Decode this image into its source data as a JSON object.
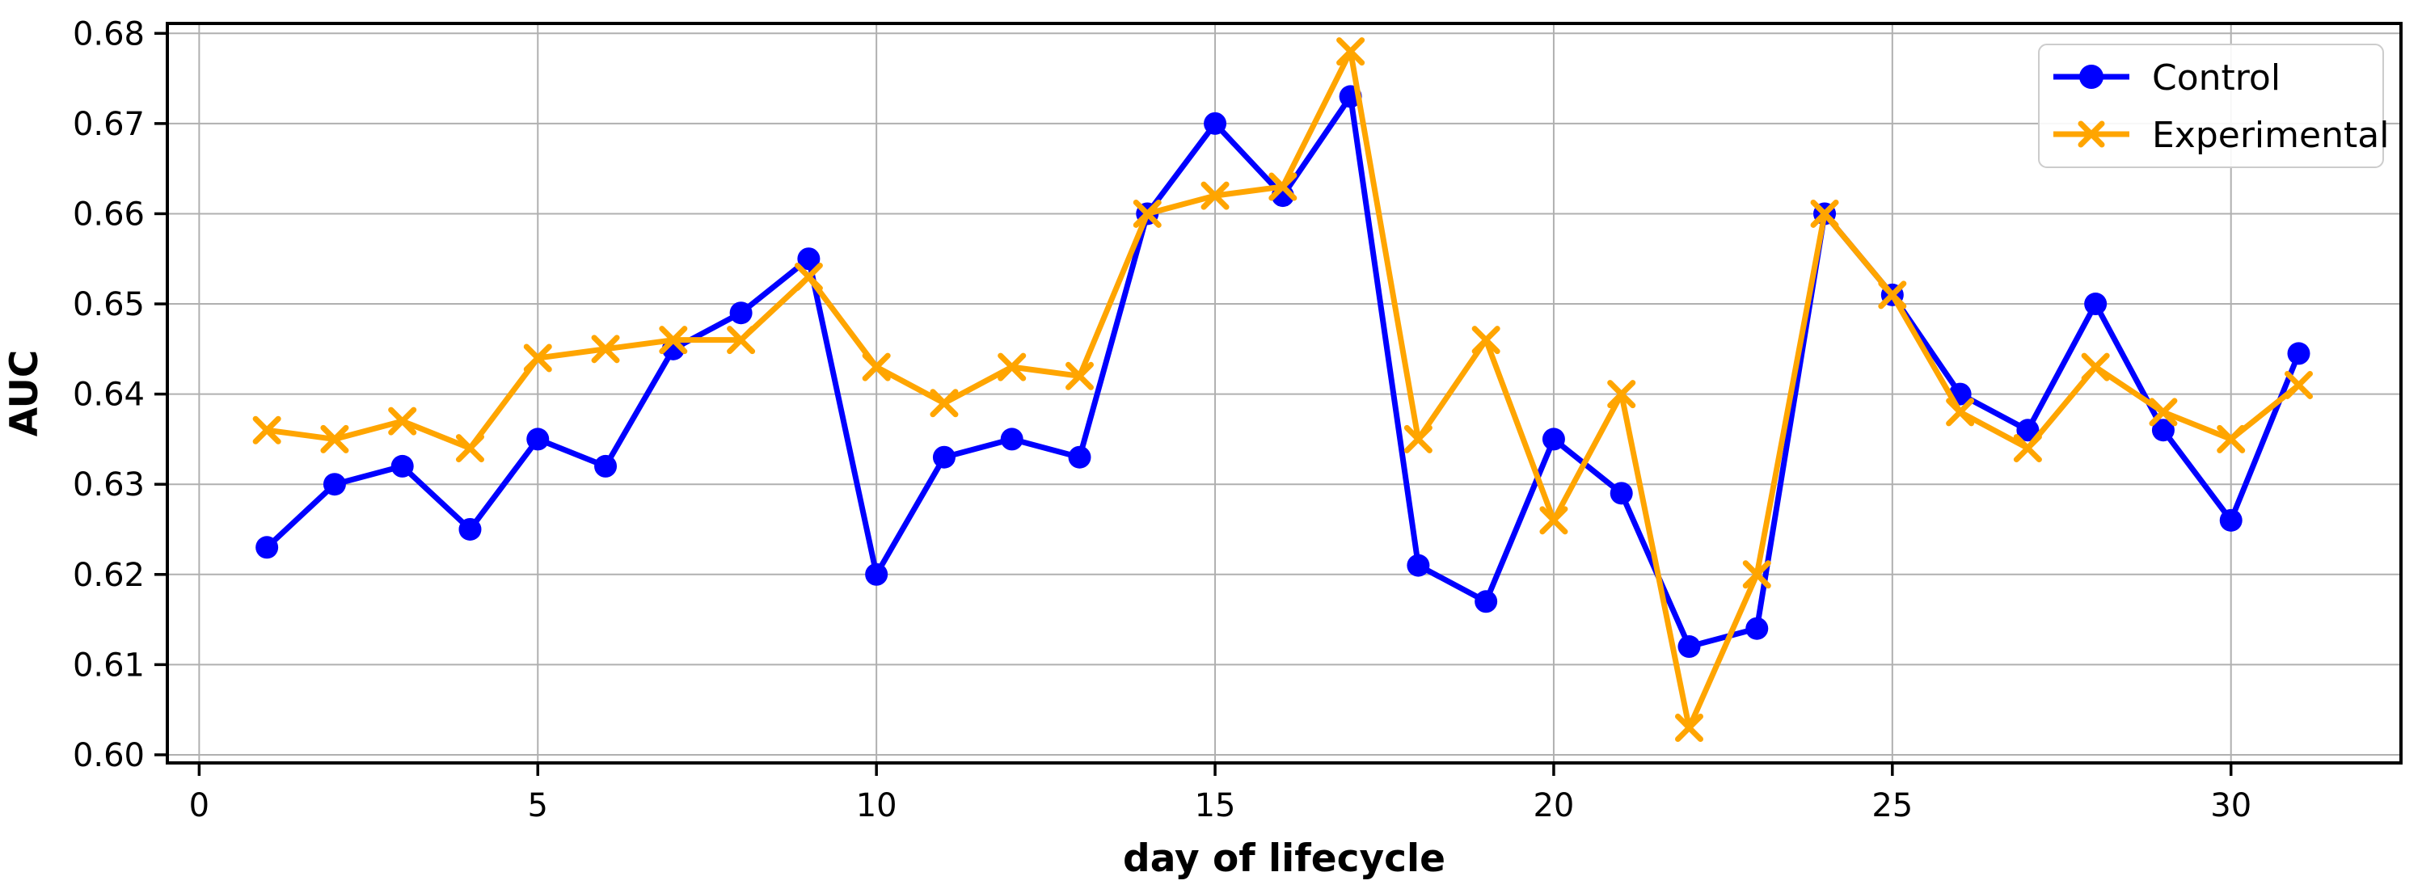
{
  "chart_data": {
    "type": "line",
    "title": "",
    "xlabel": "day of lifecycle",
    "ylabel": "AUC",
    "grid": true,
    "grid_color": "#b0b0b0",
    "frame_color": "#000000",
    "background_color": "#ffffff",
    "legend_position": "upper right",
    "legend_border_color": "#cccccc",
    "xlim": [
      -0.47,
      32.51
    ],
    "ylim": [
      0.5991,
      0.6811
    ],
    "xticks": [
      0,
      5,
      10,
      15,
      20,
      25,
      30
    ],
    "yticks": [
      "0.60",
      "0.61",
      "0.62",
      "0.63",
      "0.64",
      "0.65",
      "0.66",
      "0.67",
      "0.68"
    ],
    "x": [
      1,
      2,
      3,
      4,
      5,
      6,
      7,
      8,
      9,
      10,
      11,
      12,
      13,
      14,
      15,
      16,
      17,
      18,
      19,
      20,
      21,
      22,
      23,
      24,
      25,
      26,
      27,
      28,
      29,
      30,
      31
    ],
    "series": [
      {
        "name": "Control",
        "color": "#0000ff",
        "marker": "circle",
        "values": [
          0.623,
          0.63,
          0.632,
          0.625,
          0.635,
          0.632,
          0.645,
          0.649,
          0.655,
          0.62,
          0.633,
          0.635,
          0.633,
          0.66,
          0.67,
          0.662,
          0.673,
          0.621,
          0.617,
          0.635,
          0.629,
          0.612,
          0.614,
          0.66,
          0.651,
          0.64,
          0.636,
          0.65,
          0.636,
          0.626,
          0.6445
        ]
      },
      {
        "name": "Experimental",
        "color": "#ffa500",
        "marker": "x",
        "values": [
          0.636,
          0.635,
          0.637,
          0.634,
          0.644,
          0.645,
          0.646,
          0.646,
          0.653,
          0.643,
          0.639,
          0.643,
          0.642,
          0.66,
          0.662,
          0.663,
          0.678,
          0.635,
          0.646,
          0.626,
          0.64,
          0.603,
          0.62,
          0.66,
          0.651,
          0.638,
          0.634,
          0.643,
          0.638,
          0.635,
          0.641
        ]
      }
    ]
  }
}
